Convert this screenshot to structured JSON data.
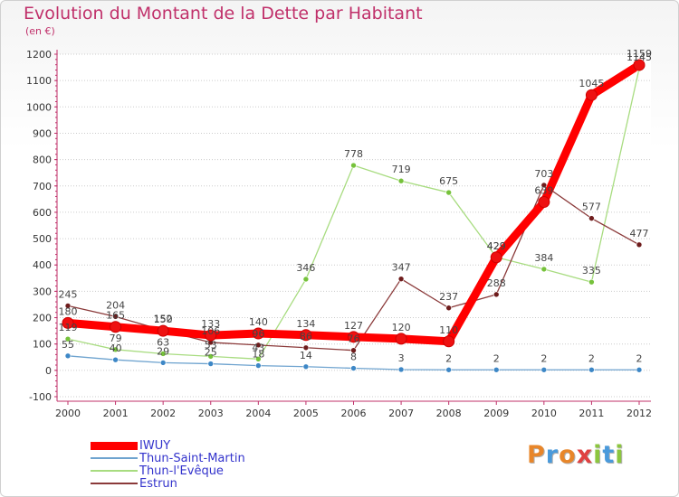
{
  "header": {
    "title": "Evolution du Montant de la Dette par Habitant",
    "subtitle": "(en €)"
  },
  "logo": {
    "letters": [
      "P",
      "r",
      "o",
      "x",
      "i",
      "t",
      "i"
    ],
    "colors": [
      "#e8862a",
      "#4a9adb",
      "#e8862a",
      "#e04040",
      "#8cc63f",
      "#4a9adb",
      "#8cc63f"
    ]
  },
  "chart_data": {
    "type": "line",
    "title": "Evolution du Montant de la Dette par Habitant",
    "subtitle": "(en €)",
    "x": [
      "2000",
      "2001",
      "2002",
      "2003",
      "2004",
      "2005",
      "2006",
      "2007",
      "2008",
      "2009",
      "2010",
      "2011",
      "2012"
    ],
    "ylim": [
      -100,
      1200
    ],
    "yticks": [
      -100,
      0,
      100,
      200,
      300,
      400,
      500,
      600,
      700,
      800,
      900,
      1000,
      1100,
      1200
    ],
    "grid": "dotted horizontal",
    "legend_position": "bottom-left",
    "series": [
      {
        "name": "IWUY",
        "color": "#ff0000",
        "marker_color": "#ee1111",
        "width": 9,
        "values": [
          180,
          165,
          150,
          133,
          140,
          134,
          127,
          120,
          110,
          429,
          639,
          1045,
          1159
        ],
        "labels": [
          "180",
          "165",
          "150",
          "133",
          "140",
          "134",
          "127",
          "120",
          "110",
          "429",
          "639",
          "1045",
          "1159"
        ]
      },
      {
        "name": "Thun-Saint-Martin",
        "color": "#6ea3cf",
        "marker_color": "#3d87c6",
        "width": 1.3,
        "values": [
          55,
          40,
          29,
          25,
          18,
          14,
          8,
          3,
          2,
          2,
          2,
          2,
          2
        ],
        "labels": [
          "55",
          "40",
          "29",
          "25",
          "18",
          "14",
          "8",
          "3",
          "2",
          "2",
          "2",
          "2",
          "2"
        ]
      },
      {
        "name": "Thun-l'Evêque",
        "color": "#a8dc80",
        "marker_color": "#76c23b",
        "width": 1.3,
        "values": [
          119,
          79,
          63,
          53,
          43,
          346,
          778,
          719,
          675,
          429,
          384,
          335,
          1145
        ],
        "labels": [
          "119",
          "79",
          "63",
          "53",
          "43",
          "346",
          "778",
          "719",
          "675",
          "429",
          "384",
          "335",
          "1145"
        ]
      },
      {
        "name": "Estrun",
        "color": "#8b3a3a",
        "marker_color": "#6e1c1c",
        "width": 1.3,
        "values": [
          245,
          204,
          152,
          106,
          96,
          86,
          76,
          347,
          237,
          288,
          703,
          577,
          477
        ],
        "labels": [
          "245",
          "204",
          "152",
          "106",
          "96",
          "86",
          "76",
          "347",
          "237",
          "288",
          "703",
          "577",
          "477"
        ]
      }
    ]
  }
}
